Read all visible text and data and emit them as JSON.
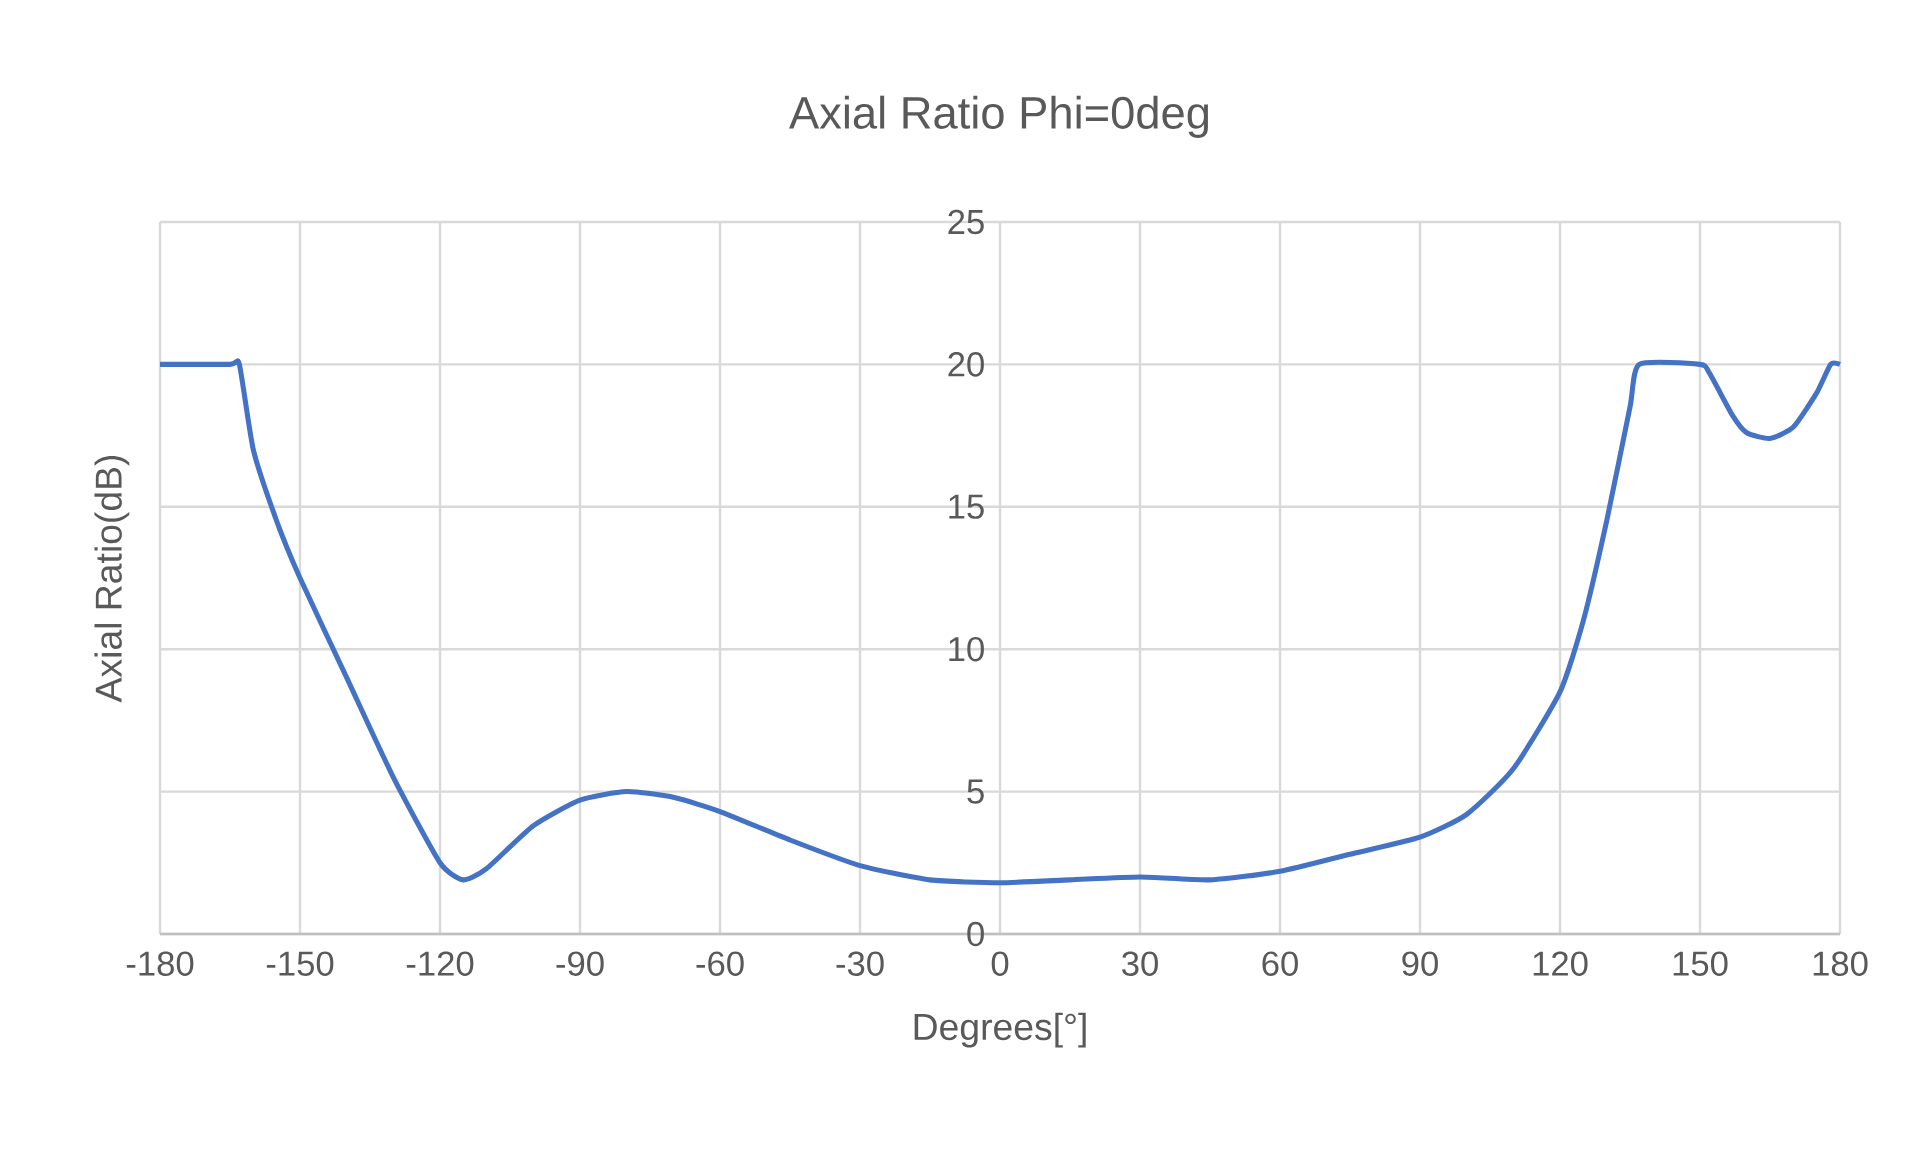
{
  "chart_data": {
    "type": "line",
    "title": "Axial Ratio Phi=0deg",
    "xlabel": "Degrees[°]",
    "ylabel": "Axial Ratio(dB)",
    "xlim": [
      -180,
      180
    ],
    "xticks": [
      -180,
      -150,
      -120,
      -90,
      -60,
      -30,
      0,
      30,
      60,
      90,
      120,
      150,
      180
    ],
    "ylim": [
      0,
      25
    ],
    "yticks": [
      0,
      5,
      10,
      15,
      20,
      25
    ],
    "grid": true,
    "marker": "none",
    "line_style": "solid",
    "series": [
      {
        "color": "#4472c4",
        "x": [
          -180,
          -165,
          -163,
          -160,
          -155,
          -150,
          -140,
          -130,
          -120,
          -115,
          -110,
          -100,
          -90,
          -80,
          -70,
          -60,
          -45,
          -30,
          -15,
          0,
          15,
          30,
          45,
          60,
          75,
          90,
          100,
          110,
          120,
          125,
          130,
          135,
          137,
          150,
          152,
          157,
          160,
          165,
          170,
          175,
          178,
          180
        ],
        "values": [
          20,
          20,
          20,
          17,
          14.5,
          12.5,
          9,
          5.5,
          2.5,
          1.9,
          2.3,
          3.8,
          4.7,
          5,
          4.8,
          4.3,
          3.3,
          2.4,
          1.9,
          1.8,
          1.9,
          2.0,
          1.9,
          2.2,
          2.8,
          3.4,
          4.2,
          5.8,
          8.5,
          11,
          14.5,
          18.5,
          20,
          20,
          19.7,
          18.2,
          17.6,
          17.4,
          17.8,
          19,
          20,
          20
        ]
      }
    ]
  }
}
